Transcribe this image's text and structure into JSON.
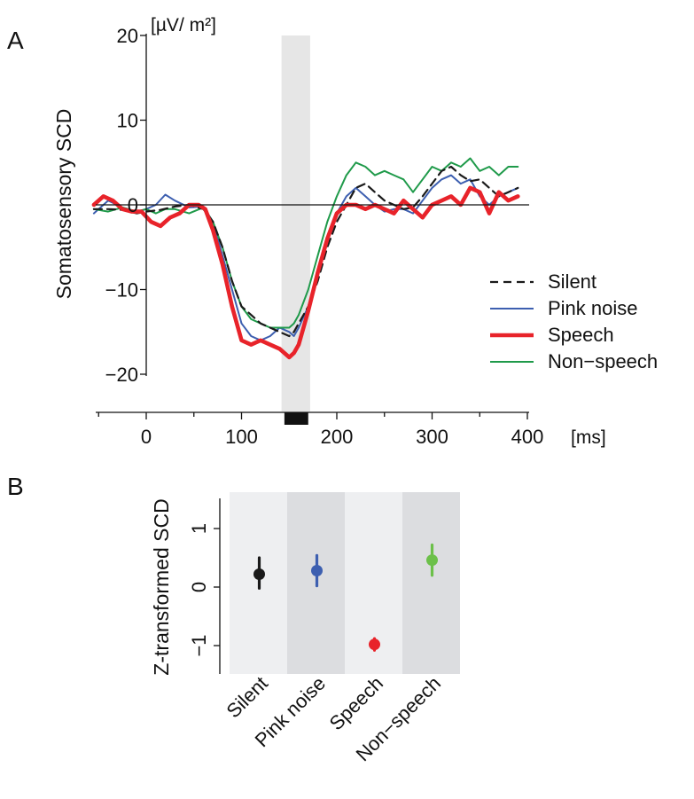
{
  "colors": {
    "silent": "#1a1a1a",
    "pink_noise": "#3d5fb0",
    "speech": "#e8232a",
    "non_speech": "#1f9a4a",
    "non_speech_dot": "#6cc04a",
    "shade": "#e6e6e6",
    "band_light": "#eeeff1",
    "band_dark": "#dcdde0"
  },
  "chart_data": [
    {
      "panel_label": "A",
      "type": "line",
      "title": "",
      "ylabel": "Somatosensory SCD",
      "yunit": "[µV/ m²]",
      "xunit": "[ms]",
      "xlim": [
        -55,
        400
      ],
      "ylim": [
        -20,
        20
      ],
      "xticks": [
        0,
        100,
        200,
        300,
        400
      ],
      "yticks": [
        20,
        10,
        0,
        -10,
        -20
      ],
      "xtick_labels": [
        "0",
        "100",
        "200",
        "300",
        "400"
      ],
      "ytick_labels": [
        "20",
        "10",
        "0",
        "−10",
        "−20"
      ],
      "highlight_window_ms": [
        142,
        172
      ],
      "stimulus_bar_ms": [
        145,
        170
      ],
      "legend_position": "right",
      "grid": false,
      "series": [
        {
          "name": "Silent",
          "style": "dashed",
          "x": [
            -55,
            -40,
            -25,
            -10,
            0,
            15,
            30,
            45,
            60,
            70,
            80,
            90,
            100,
            110,
            120,
            130,
            140,
            150,
            155,
            160,
            170,
            180,
            190,
            200,
            210,
            220,
            230,
            240,
            250,
            260,
            270,
            280,
            290,
            300,
            310,
            320,
            330,
            340,
            350,
            360,
            370,
            380,
            390
          ],
          "y": [
            -0.5,
            -0.5,
            -0.6,
            -1,
            -0.8,
            -0.6,
            -0.2,
            0,
            -0.5,
            -2,
            -5,
            -9,
            -12,
            -13,
            -14,
            -14.5,
            -15,
            -15.5,
            -15,
            -14,
            -12,
            -9,
            -5,
            -2,
            0,
            2,
            2.5,
            1.5,
            0.5,
            0,
            -0.5,
            -0.3,
            1,
            2.5,
            4,
            4.5,
            3.5,
            2.8,
            3,
            2,
            1,
            1.5,
            2
          ]
        },
        {
          "name": "Pink noise",
          "style": "solid",
          "x": [
            -55,
            -40,
            -25,
            -10,
            0,
            10,
            20,
            30,
            45,
            60,
            70,
            80,
            90,
            100,
            110,
            120,
            130,
            140,
            150,
            155,
            160,
            170,
            180,
            190,
            200,
            210,
            220,
            230,
            240,
            250,
            260,
            270,
            280,
            290,
            300,
            310,
            320,
            330,
            340,
            350,
            360,
            370,
            380,
            390
          ],
          "y": [
            -1,
            0.5,
            -0.3,
            -0.8,
            -0.5,
            0,
            1.2,
            0.5,
            -0.3,
            -0.2,
            -2,
            -6,
            -10,
            -14,
            -15.5,
            -16,
            -15.5,
            -14.5,
            -15,
            -15.5,
            -14.5,
            -12,
            -8,
            -4,
            -1,
            1,
            2,
            1,
            0,
            -0.8,
            -0.5,
            -0.5,
            -1,
            0.5,
            2,
            3,
            3.5,
            2.5,
            3,
            1,
            0,
            1,
            1.5,
            2
          ]
        },
        {
          "name": "Speech",
          "style": "thick",
          "x": [
            -55,
            -45,
            -35,
            -25,
            -15,
            -5,
            5,
            15,
            25,
            35,
            45,
            55,
            62,
            70,
            80,
            90,
            100,
            110,
            120,
            130,
            140,
            145,
            150,
            155,
            160,
            170,
            180,
            190,
            200,
            210,
            220,
            230,
            240,
            250,
            260,
            270,
            280,
            290,
            300,
            310,
            320,
            330,
            340,
            350,
            360,
            370,
            380,
            390
          ],
          "y": [
            0,
            1,
            0.5,
            -0.5,
            -0.8,
            -0.8,
            -2,
            -2.5,
            -1.5,
            -1,
            0,
            0,
            -0.5,
            -3,
            -7,
            -12,
            -16,
            -16.5,
            -16,
            -16.5,
            -17,
            -17.5,
            -18,
            -17.5,
            -16.5,
            -12.5,
            -8,
            -4,
            -1,
            0,
            0,
            -0.5,
            0,
            -0.5,
            -1,
            0.5,
            -0.5,
            -1.5,
            0,
            0.5,
            1,
            0,
            2,
            1.5,
            -1,
            1.5,
            0.5,
            1
          ]
        },
        {
          "name": "Non−speech",
          "style": "solid",
          "x": [
            -55,
            -40,
            -25,
            -10,
            0,
            10,
            20,
            30,
            45,
            60,
            70,
            80,
            90,
            100,
            110,
            120,
            130,
            140,
            150,
            155,
            160,
            170,
            180,
            190,
            200,
            210,
            220,
            230,
            240,
            250,
            260,
            270,
            280,
            290,
            300,
            310,
            320,
            330,
            340,
            350,
            360,
            370,
            380,
            390
          ],
          "y": [
            -0.5,
            -0.8,
            -0.3,
            -0.8,
            -0.5,
            -1,
            -0.5,
            -0.5,
            -1,
            -0.3,
            -2,
            -5,
            -9,
            -12,
            -13.5,
            -14,
            -14.5,
            -14.5,
            -14.5,
            -14,
            -13,
            -10,
            -6,
            -2,
            1,
            3.5,
            5,
            4.5,
            3.5,
            4,
            3.5,
            3,
            1.5,
            3,
            4.5,
            4,
            5,
            4.5,
            5.5,
            4,
            4.5,
            3.5,
            4.5,
            4.5
          ]
        }
      ]
    },
    {
      "panel_label": "B",
      "type": "scatter",
      "title": "",
      "ylabel": "Z-transformed SCD",
      "ylim": [
        -1.5,
        1.5
      ],
      "yticks": [
        1,
        0,
        -1
      ],
      "ytick_labels": [
        "1",
        "0",
        "−1"
      ],
      "categories": [
        "Silent",
        "Pink noise",
        "Speech",
        "Non−speech"
      ],
      "values": [
        0.22,
        0.28,
        -0.98,
        0.46
      ],
      "error_low": [
        -0.02,
        0.02,
        -1.08,
        0.2
      ],
      "error_high": [
        0.5,
        0.54,
        -0.88,
        0.72
      ],
      "grid": false
    }
  ]
}
